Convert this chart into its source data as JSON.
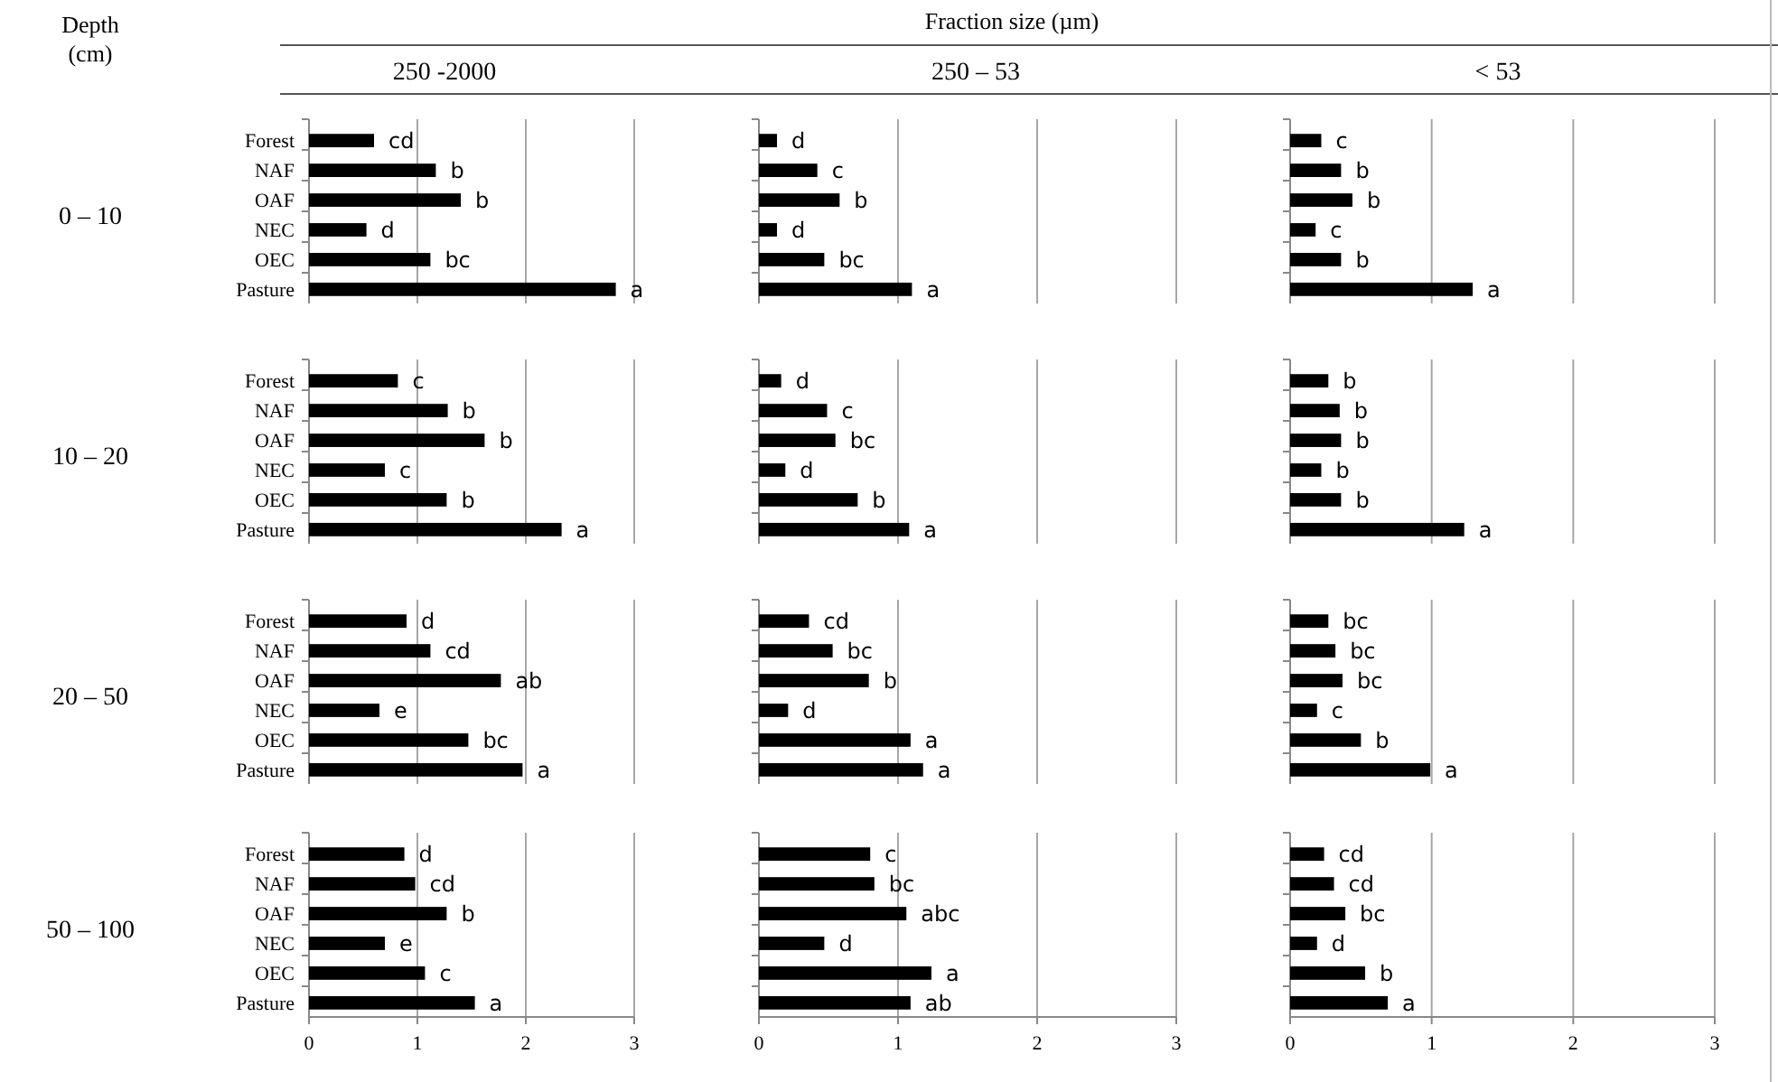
{
  "chart_data": [
    {
      "type": "bar",
      "orientation": "horizontal",
      "title": "250 -2000",
      "ylabel": "0 – 10",
      "categories": [
        "Forest",
        "NAF",
        "OAF",
        "NEC",
        "OEC",
        "Pasture"
      ],
      "values": [
        0.6,
        1.17,
        1.4,
        0.53,
        1.12,
        2.83
      ],
      "color": "#000000",
      "xlim": [
        0,
        3
      ],
      "xticks": [
        0,
        1,
        2,
        3
      ],
      "grid": "x",
      "tick_labels": "y",
      "annotations": [
        {
          "text": "cd",
          "x": 0.6,
          "y": "Forest"
        },
        {
          "text": "b",
          "x": 1.17,
          "y": "NAF"
        },
        {
          "text": "b",
          "x": 1.4,
          "y": "OAF"
        },
        {
          "text": "d",
          "x": 0.53,
          "y": "NEC"
        },
        {
          "text": "bc",
          "x": 1.12,
          "y": "OEC"
        },
        {
          "text": "a",
          "x": 2.83,
          "y": "Pasture"
        }
      ]
    },
    {
      "type": "bar",
      "orientation": "horizontal",
      "title": "250 – 53",
      "categories": [
        "Forest",
        "NAF",
        "OAF",
        "NEC",
        "OEC",
        "Pasture"
      ],
      "values": [
        0.13,
        0.42,
        0.58,
        0.13,
        0.47,
        1.1
      ],
      "color": "#000000",
      "xlim": [
        0,
        3
      ],
      "xticks": [
        0,
        1,
        2,
        3
      ],
      "grid": "x",
      "tick_labels": false,
      "annotations": [
        {
          "text": "d",
          "x": 0.13,
          "y": "Forest"
        },
        {
          "text": "c",
          "x": 0.42,
          "y": "NAF"
        },
        {
          "text": "b",
          "x": 0.58,
          "y": "OAF"
        },
        {
          "text": "d",
          "x": 0.13,
          "y": "NEC"
        },
        {
          "text": "bc",
          "x": 0.47,
          "y": "OEC"
        },
        {
          "text": "a",
          "x": 1.1,
          "y": "Pasture"
        }
      ]
    },
    {
      "type": "bar",
      "orientation": "horizontal",
      "title": "< 53",
      "categories": [
        "Forest",
        "NAF",
        "OAF",
        "NEC",
        "OEC",
        "Pasture"
      ],
      "values": [
        0.22,
        0.36,
        0.44,
        0.18,
        0.36,
        1.29
      ],
      "color": "#000000",
      "xlim": [
        0,
        3
      ],
      "xticks": [
        0,
        1,
        2,
        3
      ],
      "grid": "x",
      "tick_labels": false,
      "annotations": [
        {
          "text": "c",
          "x": 0.22,
          "y": "Forest"
        },
        {
          "text": "b",
          "x": 0.36,
          "y": "NAF"
        },
        {
          "text": "b",
          "x": 0.44,
          "y": "OAF"
        },
        {
          "text": "c",
          "x": 0.18,
          "y": "NEC"
        },
        {
          "text": "b",
          "x": 0.36,
          "y": "OEC"
        },
        {
          "text": "a",
          "x": 1.29,
          "y": "Pasture"
        }
      ]
    },
    {
      "type": "bar",
      "orientation": "horizontal",
      "ylabel": "10 – 20",
      "categories": [
        "Forest",
        "NAF",
        "OAF",
        "NEC",
        "OEC",
        "Pasture"
      ],
      "values": [
        0.82,
        1.28,
        1.62,
        0.7,
        1.27,
        2.33
      ],
      "color": "#000000",
      "xlim": [
        0,
        3
      ],
      "xticks": [
        0,
        1,
        2,
        3
      ],
      "grid": "x",
      "tick_labels": "y",
      "annotations": [
        {
          "text": "c",
          "x": 0.82,
          "y": "Forest"
        },
        {
          "text": "b",
          "x": 1.28,
          "y": "NAF"
        },
        {
          "text": "b",
          "x": 1.62,
          "y": "OAF"
        },
        {
          "text": "c",
          "x": 0.7,
          "y": "NEC"
        },
        {
          "text": "b",
          "x": 1.27,
          "y": "OEC"
        },
        {
          "text": "a",
          "x": 2.33,
          "y": "Pasture"
        }
      ]
    },
    {
      "type": "bar",
      "orientation": "horizontal",
      "categories": [
        "Forest",
        "NAF",
        "OAF",
        "NEC",
        "OEC",
        "Pasture"
      ],
      "values": [
        0.16,
        0.49,
        0.55,
        0.19,
        0.71,
        1.08
      ],
      "color": "#000000",
      "xlim": [
        0,
        3
      ],
      "xticks": [
        0,
        1,
        2,
        3
      ],
      "grid": "x",
      "tick_labels": false,
      "annotations": [
        {
          "text": "d",
          "x": 0.16,
          "y": "Forest"
        },
        {
          "text": "c",
          "x": 0.49,
          "y": "NAF"
        },
        {
          "text": "bc",
          "x": 0.55,
          "y": "OAF"
        },
        {
          "text": "d",
          "x": 0.19,
          "y": "NEC"
        },
        {
          "text": "b",
          "x": 0.71,
          "y": "OEC"
        },
        {
          "text": "a",
          "x": 1.08,
          "y": "Pasture"
        }
      ]
    },
    {
      "type": "bar",
      "orientation": "horizontal",
      "categories": [
        "Forest",
        "NAF",
        "OAF",
        "NEC",
        "OEC",
        "Pasture"
      ],
      "values": [
        0.27,
        0.35,
        0.36,
        0.22,
        0.36,
        1.23
      ],
      "color": "#000000",
      "xlim": [
        0,
        3
      ],
      "xticks": [
        0,
        1,
        2,
        3
      ],
      "grid": "x",
      "tick_labels": false,
      "annotations": [
        {
          "text": "b",
          "x": 0.27,
          "y": "Forest"
        },
        {
          "text": "b",
          "x": 0.35,
          "y": "NAF"
        },
        {
          "text": "b",
          "x": 0.36,
          "y": "OAF"
        },
        {
          "text": "b",
          "x": 0.22,
          "y": "NEC"
        },
        {
          "text": "b",
          "x": 0.36,
          "y": "OEC"
        },
        {
          "text": "a",
          "x": 1.23,
          "y": "Pasture"
        }
      ]
    },
    {
      "type": "bar",
      "orientation": "horizontal",
      "ylabel": "20 – 50",
      "categories": [
        "Forest",
        "NAF",
        "OAF",
        "NEC",
        "OEC",
        "Pasture"
      ],
      "values": [
        0.9,
        1.12,
        1.77,
        0.65,
        1.47,
        1.97
      ],
      "color": "#000000",
      "xlim": [
        0,
        3
      ],
      "xticks": [
        0,
        1,
        2,
        3
      ],
      "grid": "x",
      "tick_labels": "y",
      "annotations": [
        {
          "text": "d",
          "x": 0.9,
          "y": "Forest"
        },
        {
          "text": "cd",
          "x": 1.12,
          "y": "NAF"
        },
        {
          "text": "ab",
          "x": 1.77,
          "y": "OAF"
        },
        {
          "text": "e",
          "x": 0.65,
          "y": "NEC"
        },
        {
          "text": "bc",
          "x": 1.47,
          "y": "OEC"
        },
        {
          "text": "a",
          "x": 1.97,
          "y": "Pasture"
        }
      ]
    },
    {
      "type": "bar",
      "orientation": "horizontal",
      "categories": [
        "Forest",
        "NAF",
        "OAF",
        "NEC",
        "OEC",
        "Pasture"
      ],
      "values": [
        0.36,
        0.53,
        0.79,
        0.21,
        1.09,
        1.18
      ],
      "color": "#000000",
      "xlim": [
        0,
        3
      ],
      "xticks": [
        0,
        1,
        2,
        3
      ],
      "grid": "x",
      "tick_labels": false,
      "annotations": [
        {
          "text": "cd",
          "x": 0.36,
          "y": "Forest"
        },
        {
          "text": "bc",
          "x": 0.53,
          "y": "NAF"
        },
        {
          "text": "b",
          "x": 0.79,
          "y": "OAF"
        },
        {
          "text": "d",
          "x": 0.21,
          "y": "NEC"
        },
        {
          "text": "a",
          "x": 1.09,
          "y": "OEC"
        },
        {
          "text": "a",
          "x": 1.18,
          "y": "Pasture"
        }
      ]
    },
    {
      "type": "bar",
      "orientation": "horizontal",
      "categories": [
        "Forest",
        "NAF",
        "OAF",
        "NEC",
        "OEC",
        "Pasture"
      ],
      "values": [
        0.27,
        0.32,
        0.37,
        0.19,
        0.5,
        0.99
      ],
      "color": "#000000",
      "xlim": [
        0,
        3
      ],
      "xticks": [
        0,
        1,
        2,
        3
      ],
      "grid": "x",
      "tick_labels": false,
      "annotations": [
        {
          "text": "bc",
          "x": 0.27,
          "y": "Forest"
        },
        {
          "text": "bc",
          "x": 0.32,
          "y": "NAF"
        },
        {
          "text": "bc",
          "x": 0.37,
          "y": "OAF"
        },
        {
          "text": "c",
          "x": 0.19,
          "y": "NEC"
        },
        {
          "text": "b",
          "x": 0.5,
          "y": "OEC"
        },
        {
          "text": "a",
          "x": 0.99,
          "y": "Pasture"
        }
      ]
    },
    {
      "type": "bar",
      "orientation": "horizontal",
      "ylabel": "50 – 100",
      "categories": [
        "Forest",
        "NAF",
        "OAF",
        "NEC",
        "OEC",
        "Pasture"
      ],
      "values": [
        0.88,
        0.98,
        1.27,
        0.7,
        1.07,
        1.53
      ],
      "color": "#000000",
      "xlim": [
        0,
        3
      ],
      "xticks": [
        0,
        1,
        2,
        3
      ],
      "grid": "x",
      "annotations": [
        {
          "text": "d",
          "x": 0.88,
          "y": "Forest"
        },
        {
          "text": "cd",
          "x": 0.98,
          "y": "NAF"
        },
        {
          "text": "b",
          "x": 1.27,
          "y": "OAF"
        },
        {
          "text": "e",
          "x": 0.7,
          "y": "NEC"
        },
        {
          "text": "c",
          "x": 1.07,
          "y": "OEC"
        },
        {
          "text": "a",
          "x": 1.53,
          "y": "Pasture"
        }
      ]
    },
    {
      "type": "bar",
      "orientation": "horizontal",
      "categories": [
        "Forest",
        "NAF",
        "OAF",
        "NEC",
        "OEC",
        "Pasture"
      ],
      "values": [
        0.8,
        0.83,
        1.06,
        0.47,
        1.24,
        1.09
      ],
      "color": "#000000",
      "xlim": [
        0,
        3
      ],
      "xticks": [
        0,
        1,
        2,
        3
      ],
      "grid": "x",
      "tick_labels": "x",
      "annotations": [
        {
          "text": "c",
          "x": 0.8,
          "y": "Forest"
        },
        {
          "text": "bc",
          "x": 0.83,
          "y": "NAF"
        },
        {
          "text": "abc",
          "x": 1.06,
          "y": "OAF"
        },
        {
          "text": "d",
          "x": 0.47,
          "y": "NEC"
        },
        {
          "text": "a",
          "x": 1.24,
          "y": "OEC"
        },
        {
          "text": "ab",
          "x": 1.09,
          "y": "Pasture"
        }
      ]
    },
    {
      "type": "bar",
      "orientation": "horizontal",
      "categories": [
        "Forest",
        "NAF",
        "OAF",
        "NEC",
        "OEC",
        "Pasture"
      ],
      "values": [
        0.24,
        0.31,
        0.39,
        0.19,
        0.53,
        0.69
      ],
      "color": "#000000",
      "xlim": [
        0,
        3
      ],
      "xticks": [
        0,
        1,
        2,
        3
      ],
      "grid": "x",
      "tick_labels": "x",
      "annotations": [
        {
          "text": "cd",
          "x": 0.24,
          "y": "Forest"
        },
        {
          "text": "cd",
          "x": 0.31,
          "y": "NAF"
        },
        {
          "text": "bc",
          "x": 0.39,
          "y": "OAF"
        },
        {
          "text": "d",
          "x": 0.19,
          "y": "NEC"
        },
        {
          "text": "b",
          "x": 0.53,
          "y": "OEC"
        },
        {
          "text": "a",
          "x": 0.69,
          "y": "Pasture"
        }
      ]
    },
    {
      "type": "other",
      "annotations": [
        "Fraction size (µm)",
        "Depth (cm)"
      ]
    }
  ]
}
